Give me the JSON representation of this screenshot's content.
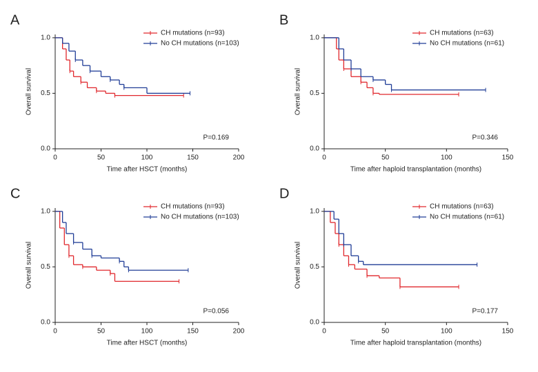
{
  "chart_data": [
    {
      "type": "line",
      "panel_label": "A",
      "xlabel": "Time after HSCT (months)",
      "ylabel": "Overall survival",
      "annotation": "P=0.169",
      "xlim": [
        0,
        200
      ],
      "xticks": [
        0,
        50,
        100,
        150,
        200
      ],
      "ylim": [
        0,
        1.03
      ],
      "yticks": [
        {
          "value": 0,
          "label": "0.0"
        },
        {
          "value": 0.5,
          "label": "0.5"
        },
        {
          "value": 1,
          "label": "1.0"
        }
      ],
      "series": [
        {
          "name": "CH mutations (n=93)",
          "color": "#e0262b",
          "x": [
            0,
            8,
            12,
            16,
            20,
            28,
            35,
            45,
            55,
            65,
            140
          ],
          "values": [
            1,
            0.9,
            0.8,
            0.7,
            0.65,
            0.6,
            0.55,
            0.52,
            0.5,
            0.48,
            0.48
          ]
        },
        {
          "name": "No CH mutations (n=103)",
          "color": "#1f3c96",
          "x": [
            0,
            8,
            15,
            22,
            30,
            38,
            50,
            60,
            70,
            75,
            100,
            147
          ],
          "values": [
            1,
            0.95,
            0.88,
            0.8,
            0.75,
            0.7,
            0.65,
            0.62,
            0.58,
            0.55,
            0.5,
            0.5
          ]
        }
      ]
    },
    {
      "type": "line",
      "panel_label": "B",
      "xlabel": "Time after haploid transplantation (months)",
      "ylabel": "Overall survival",
      "annotation": "P=0.346",
      "xlim": [
        0,
        150
      ],
      "xticks": [
        0,
        50,
        100,
        150
      ],
      "ylim": [
        0,
        1.03
      ],
      "yticks": [
        {
          "value": 0,
          "label": "0.0"
        },
        {
          "value": 0.5,
          "label": "0.5"
        },
        {
          "value": 1,
          "label": "1.0"
        }
      ],
      "series": [
        {
          "name": "CH mutations (n=63)",
          "color": "#e0262b",
          "x": [
            0,
            10,
            12,
            16,
            22,
            30,
            35,
            40,
            45,
            110
          ],
          "values": [
            1,
            0.9,
            0.8,
            0.72,
            0.65,
            0.6,
            0.55,
            0.5,
            0.49,
            0.49
          ]
        },
        {
          "name": "No CH mutations (n=61)",
          "color": "#1f3c96",
          "x": [
            0,
            12,
            16,
            22,
            30,
            40,
            50,
            55,
            132
          ],
          "values": [
            1,
            0.9,
            0.8,
            0.72,
            0.65,
            0.62,
            0.58,
            0.53,
            0.53
          ]
        }
      ]
    },
    {
      "type": "line",
      "panel_label": "C",
      "xlabel": "Time after HSCT (months)",
      "ylabel": "Overall survival",
      "annotation": "P=0.056",
      "xlim": [
        0,
        200
      ],
      "xticks": [
        0,
        50,
        100,
        150,
        200
      ],
      "ylim": [
        0,
        1.03
      ],
      "yticks": [
        {
          "value": 0,
          "label": "0.0"
        },
        {
          "value": 0.5,
          "label": "0.5"
        },
        {
          "value": 1,
          "label": "1.0"
        }
      ],
      "series": [
        {
          "name": "CH mutations (n=93)",
          "color": "#e0262b",
          "x": [
            0,
            5,
            10,
            15,
            20,
            30,
            45,
            60,
            65,
            135
          ],
          "values": [
            1,
            0.85,
            0.7,
            0.6,
            0.52,
            0.5,
            0.47,
            0.44,
            0.37,
            0.37
          ]
        },
        {
          "name": "No CH mutations (n=103)",
          "color": "#1f3c96",
          "x": [
            0,
            8,
            12,
            20,
            30,
            40,
            50,
            70,
            75,
            80,
            145
          ],
          "values": [
            1,
            0.9,
            0.8,
            0.72,
            0.66,
            0.6,
            0.58,
            0.55,
            0.5,
            0.47,
            0.47
          ]
        }
      ]
    },
    {
      "type": "line",
      "panel_label": "D",
      "xlabel": "Time after haploid transplantation (months)",
      "ylabel": "Overall survival",
      "annotation": "P=0.177",
      "xlim": [
        0,
        150
      ],
      "xticks": [
        0,
        50,
        100,
        150
      ],
      "ylim": [
        0,
        1.03
      ],
      "yticks": [
        {
          "value": 0,
          "label": "0.0"
        },
        {
          "value": 0.5,
          "label": "0.5"
        },
        {
          "value": 1,
          "label": "1.0"
        }
      ],
      "series": [
        {
          "name": "CH mutations (n=63)",
          "color": "#e0262b",
          "x": [
            0,
            5,
            9,
            12,
            16,
            20,
            25,
            35,
            45,
            62,
            110
          ],
          "values": [
            1,
            0.9,
            0.8,
            0.7,
            0.6,
            0.52,
            0.48,
            0.42,
            0.4,
            0.32,
            0.32
          ]
        },
        {
          "name": "No CH mutations (n=61)",
          "color": "#1f3c96",
          "x": [
            0,
            8,
            12,
            16,
            22,
            28,
            32,
            125
          ],
          "values": [
            1,
            0.93,
            0.8,
            0.7,
            0.6,
            0.55,
            0.52,
            0.52
          ]
        }
      ]
    }
  ]
}
